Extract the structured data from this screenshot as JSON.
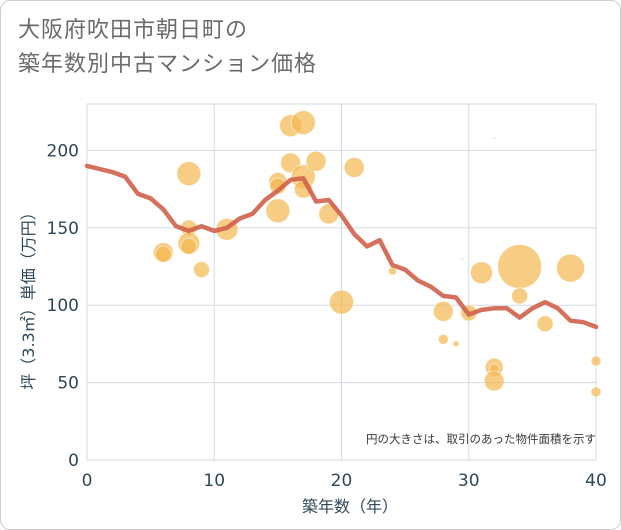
{
  "title": {
    "line1": "大阪府吹田市朝日町の",
    "line2": "築年数別中古マンション価格"
  },
  "colors": {
    "bubble": "#f3b64f",
    "line": "#d0604a",
    "grid": "#d3dbe4",
    "axis_text": "#2f4858"
  },
  "chart_data": {
    "type": "scatter",
    "title": "大阪府吹田市朝日町の 築年数別中古マンション価格",
    "xlabel": "築年数（年）",
    "ylabel": "坪（3.3㎡）単価（万円）",
    "xlim": [
      0,
      40
    ],
    "ylim": [
      0,
      230
    ],
    "xticks": [
      0,
      10,
      20,
      30,
      40
    ],
    "yticks": [
      0,
      50,
      100,
      150,
      200
    ],
    "grid": true,
    "note": "円の大きさは、取引のあった物件面積を示す",
    "series": [
      {
        "type": "bubble",
        "points": [
          {
            "x": 6,
            "y": 134,
            "r": 10
          },
          {
            "x": 6,
            "y": 133,
            "r": 8
          },
          {
            "x": 8,
            "y": 185,
            "r": 12
          },
          {
            "x": 8,
            "y": 150,
            "r": 8
          },
          {
            "x": 8,
            "y": 140,
            "r": 11
          },
          {
            "x": 8,
            "y": 138,
            "r": 8
          },
          {
            "x": 9,
            "y": 123,
            "r": 8
          },
          {
            "x": 11,
            "y": 149,
            "r": 11
          },
          {
            "x": 15,
            "y": 180,
            "r": 9
          },
          {
            "x": 15,
            "y": 177,
            "r": 8
          },
          {
            "x": 15,
            "y": 161,
            "r": 12
          },
          {
            "x": 16,
            "y": 216,
            "r": 11
          },
          {
            "x": 16,
            "y": 192,
            "r": 10
          },
          {
            "x": 17,
            "y": 218,
            "r": 12
          },
          {
            "x": 17,
            "y": 183,
            "r": 12
          },
          {
            "x": 17,
            "y": 175,
            "r": 9
          },
          {
            "x": 18,
            "y": 193,
            "r": 10
          },
          {
            "x": 19,
            "y": 159,
            "r": 10
          },
          {
            "x": 20,
            "y": 102,
            "r": 12
          },
          {
            "x": 21,
            "y": 189,
            "r": 10
          },
          {
            "x": 24,
            "y": 122,
            "r": 4
          },
          {
            "x": 28,
            "y": 96,
            "r": 10
          },
          {
            "x": 28,
            "y": 78,
            "r": 5
          },
          {
            "x": 29,
            "y": 75,
            "r": 3
          },
          {
            "x": 29.5,
            "y": 130,
            "r": 1
          },
          {
            "x": 30,
            "y": 95,
            "r": 8
          },
          {
            "x": 31,
            "y": 121,
            "r": 11
          },
          {
            "x": 32,
            "y": 208,
            "r": 1
          },
          {
            "x": 32,
            "y": 60,
            "r": 9
          },
          {
            "x": 32,
            "y": 59,
            "r": 5
          },
          {
            "x": 32,
            "y": 51,
            "r": 10
          },
          {
            "x": 34,
            "y": 125,
            "r": 22
          },
          {
            "x": 34,
            "y": 106,
            "r": 8
          },
          {
            "x": 36,
            "y": 88,
            "r": 8
          },
          {
            "x": 38,
            "y": 124,
            "r": 14
          },
          {
            "x": 40,
            "y": 64,
            "r": 5
          },
          {
            "x": 40,
            "y": 44,
            "r": 5
          }
        ]
      },
      {
        "type": "line",
        "x": [
          0,
          1,
          2,
          3,
          4,
          5,
          6,
          7,
          8,
          9,
          10,
          11,
          12,
          13,
          14,
          15,
          16,
          17,
          18,
          19,
          20,
          21,
          22,
          23,
          24,
          25,
          26,
          27,
          28,
          29,
          30,
          31,
          32,
          33,
          34,
          35,
          36,
          37,
          38,
          39,
          40
        ],
        "y": [
          190,
          188,
          186,
          183,
          172,
          169,
          162,
          151,
          148,
          151,
          148,
          150,
          156,
          159,
          168,
          174,
          181,
          182,
          167,
          168,
          158,
          146,
          138,
          142,
          126,
          123,
          116,
          112,
          106,
          105,
          94,
          97,
          98,
          98,
          92,
          98,
          102,
          98,
          90,
          89,
          86
        ]
      }
    ]
  }
}
